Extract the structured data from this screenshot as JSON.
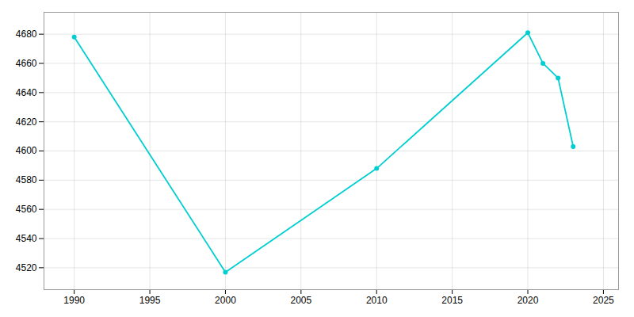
{
  "chart_data": {
    "type": "line",
    "x": [
      1990,
      2000,
      2010,
      2020,
      2021,
      2022,
      2023
    ],
    "values": [
      4678,
      4517,
      4588,
      4681,
      4660,
      4650,
      4603
    ],
    "color": "#00CED1",
    "marker": "o",
    "xlim": [
      1988,
      2026
    ],
    "ylim": [
      4505,
      4695
    ],
    "xticks": [
      1990,
      1995,
      2000,
      2005,
      2010,
      2015,
      2020,
      2025
    ],
    "yticks": [
      4520,
      4540,
      4560,
      4580,
      4600,
      4620,
      4640,
      4660,
      4680
    ],
    "grid": true
  }
}
